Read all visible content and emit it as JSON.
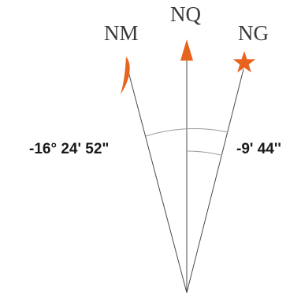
{
  "labels": {
    "magnetic_north": "NM",
    "true_north": "NQ",
    "grid_north": "NG"
  },
  "angles": {
    "magnetic_declination": "-16° 24' 52\"",
    "grid_convergence": "-9' 44''"
  },
  "icons": {
    "magnetic_north": "half-arrow-icon",
    "true_north": "arrowhead-icon",
    "grid_north": "star-icon"
  },
  "colors": {
    "accent": "#e8641e",
    "lines": "#4a4a4a",
    "arcs": "#9a9a9a",
    "text": "#1a1a1a"
  }
}
